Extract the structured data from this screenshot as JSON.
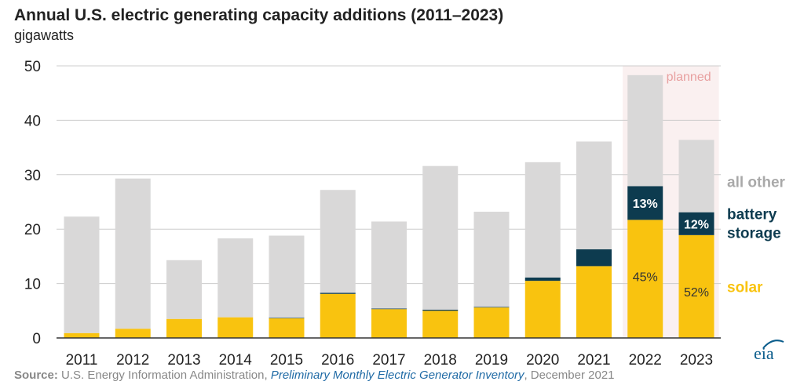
{
  "title": "Annual U.S. electric generating capacity additions (2011–2023)",
  "subtitle": "gigawatts",
  "source": {
    "label": "Source:",
    "org": "U.S. Energy Information Administration,",
    "publication": "Preliminary Monthly Electric Generator Inventory",
    "date": ", December 2021"
  },
  "logo_text": "eia",
  "colors": {
    "solar": "#f9c30f",
    "battery": "#0d3b4f",
    "other": "#d9d8d8",
    "planned_bg": "#faf0f0",
    "planned_text": "#e8a0a0",
    "grid": "#cccccc"
  },
  "chart_data": {
    "type": "bar",
    "stacked": true,
    "categories": [
      "2011",
      "2012",
      "2013",
      "2014",
      "2015",
      "2016",
      "2017",
      "2018",
      "2019",
      "2020",
      "2021",
      "2022",
      "2023"
    ],
    "ylim": [
      0,
      50
    ],
    "yticks": [
      0,
      10,
      20,
      30,
      40,
      50
    ],
    "grid": true,
    "series": [
      {
        "name": "solar",
        "values": [
          0.9,
          1.7,
          3.5,
          3.8,
          3.6,
          8.1,
          5.3,
          5.0,
          5.6,
          10.5,
          13.2,
          21.7,
          18.9
        ]
      },
      {
        "name": "battery storage",
        "values": [
          0,
          0,
          0,
          0,
          0.1,
          0.2,
          0.1,
          0.2,
          0.1,
          0.6,
          3.1,
          6.2,
          4.2
        ]
      },
      {
        "name": "all other",
        "values": [
          21.4,
          27.6,
          10.8,
          14.5,
          15.1,
          18.9,
          16.0,
          26.4,
          17.5,
          21.2,
          19.8,
          20.4,
          13.3
        ]
      }
    ],
    "planned": {
      "label": "planned",
      "categories": [
        "2022",
        "2023"
      ]
    },
    "annotations": [
      {
        "category": "2022",
        "series": "battery storage",
        "text": "13%"
      },
      {
        "category": "2023",
        "series": "battery storage",
        "text": "12%"
      },
      {
        "category": "2022",
        "series": "solar",
        "text": "45%"
      },
      {
        "category": "2023",
        "series": "solar",
        "text": "52%"
      }
    ],
    "legend": [
      {
        "series": "all other",
        "lines": [
          "all other"
        ],
        "color": "#a9a9a9"
      },
      {
        "series": "battery storage",
        "lines": [
          "battery",
          "storage"
        ],
        "color": "#0d3b4f"
      },
      {
        "series": "solar",
        "lines": [
          "solar"
        ],
        "color": "#f9c30f"
      }
    ]
  }
}
